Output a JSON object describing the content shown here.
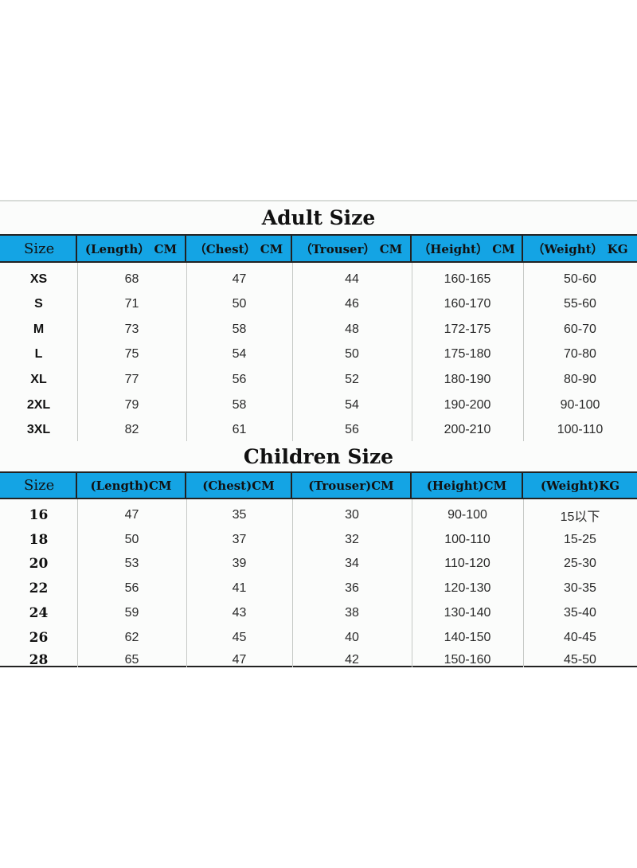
{
  "adult": {
    "title": "Adult Size",
    "headers": [
      "Size",
      "(Length） CM",
      "（Chest） CM",
      "（Trouser） CM",
      "（Height） CM",
      "（Weight） KG"
    ],
    "rows": [
      [
        "XS",
        "68",
        "47",
        "44",
        "160-165",
        "50-60"
      ],
      [
        "S",
        "71",
        "50",
        "46",
        "160-170",
        "55-60"
      ],
      [
        "M",
        "73",
        "58",
        "48",
        "172-175",
        "60-70"
      ],
      [
        "L",
        "75",
        "54",
        "50",
        "175-180",
        "70-80"
      ],
      [
        "XL",
        "77",
        "56",
        "52",
        "180-190",
        "80-90"
      ],
      [
        "2XL",
        "79",
        "58",
        "54",
        "190-200",
        "90-100"
      ],
      [
        "3XL",
        "82",
        "61",
        "56",
        "200-210",
        "100-110"
      ]
    ]
  },
  "children": {
    "title": "Children Size",
    "headers": [
      "Size",
      "(Length)CM",
      "(Chest)CM",
      "(Trouser)CM",
      "(Height)CM",
      "(Weight)KG"
    ],
    "rows": [
      [
        "16",
        "47",
        "35",
        "30",
        "90-100",
        "15以下"
      ],
      [
        "18",
        "50",
        "37",
        "32",
        "100-110",
        "15-25"
      ],
      [
        "20",
        "53",
        "39",
        "34",
        "110-120",
        "25-30"
      ],
      [
        "22",
        "56",
        "41",
        "36",
        "120-130",
        "30-35"
      ],
      [
        "24",
        "59",
        "43",
        "38",
        "130-140",
        "35-40"
      ],
      [
        "26",
        "62",
        "45",
        "40",
        "140-150",
        "40-45"
      ],
      [
        "28",
        "65",
        "47",
        "42",
        "150-160",
        "45-50"
      ]
    ]
  },
  "colors": {
    "header_band": "#14a4e4",
    "border": "#222222",
    "background": "#fbfcfb"
  }
}
